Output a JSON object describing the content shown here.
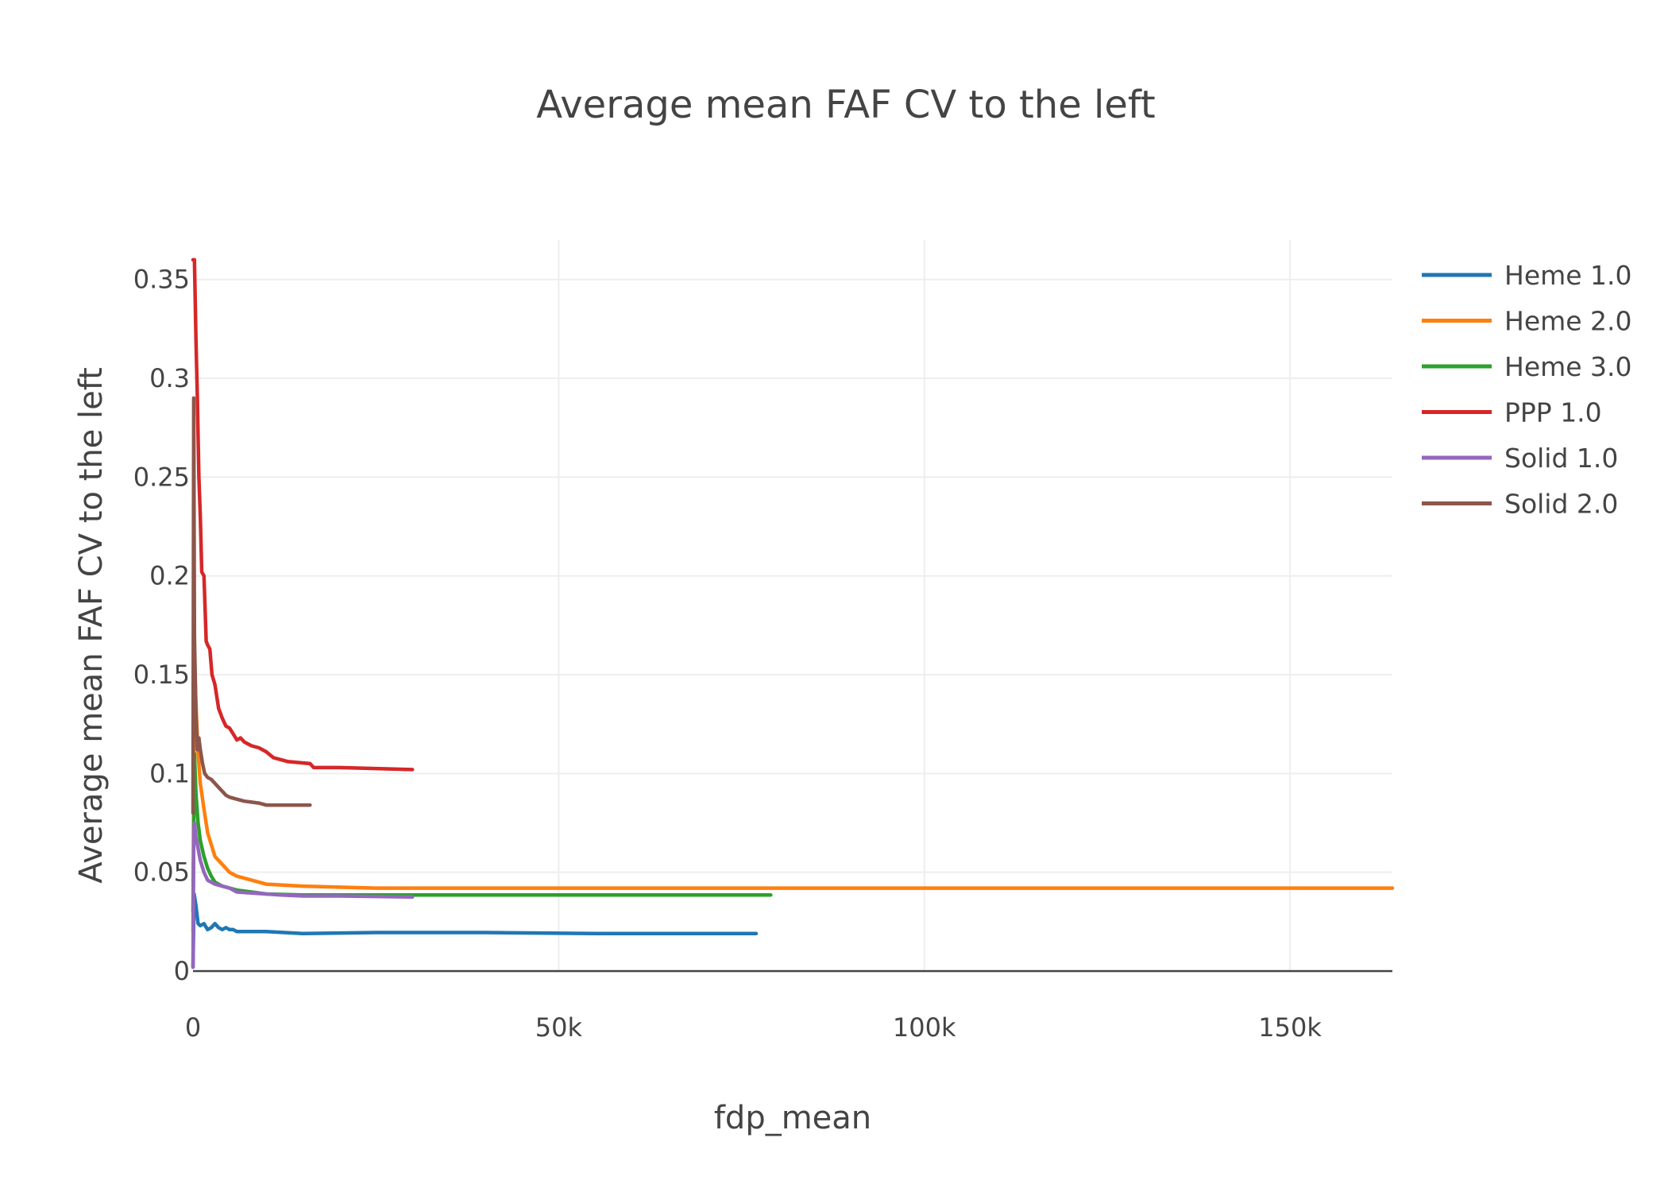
{
  "chart_data": {
    "type": "line",
    "title": "Average mean FAF CV to the left",
    "xlabel": "fdp_mean",
    "ylabel": "Average mean FAF CV to the left",
    "xlim": [
      0,
      164000
    ],
    "ylim": [
      0,
      0.37
    ],
    "x_ticks": [
      0,
      50000,
      100000,
      150000
    ],
    "x_tick_labels": [
      "0",
      "50k",
      "100k",
      "150k"
    ],
    "y_ticks": [
      0,
      0.05,
      0.1,
      0.15,
      0.2,
      0.25,
      0.3,
      0.35
    ],
    "y_tick_labels": [
      "0",
      "0.05",
      "0.1",
      "0.15",
      "0.2",
      "0.25",
      "0.3",
      "0.35"
    ],
    "grid": true,
    "legend_position": "top-right",
    "series": [
      {
        "name": "Heme 1.0",
        "color": "#1f77b4",
        "x": [
          0,
          150,
          400,
          700,
          1000,
          1500,
          2000,
          2500,
          3000,
          3500,
          4000,
          4500,
          5000,
          5500,
          6000,
          7000,
          8000,
          9000,
          10000,
          15000,
          25000,
          40000,
          55000,
          77000
        ],
        "y": [
          0.002,
          0.039,
          0.033,
          0.024,
          0.023,
          0.024,
          0.021,
          0.022,
          0.024,
          0.022,
          0.021,
          0.022,
          0.021,
          0.021,
          0.02,
          0.02,
          0.02,
          0.02,
          0.02,
          0.019,
          0.0195,
          0.0195,
          0.019,
          0.019
        ]
      },
      {
        "name": "Heme 2.0",
        "color": "#ff7f0e",
        "x": [
          0,
          200,
          400,
          700,
          1000,
          1500,
          2000,
          3000,
          4000,
          5000,
          6000,
          8000,
          10000,
          15000,
          25000,
          50000,
          100000,
          164000
        ],
        "y": [
          0.02,
          0.16,
          0.135,
          0.11,
          0.095,
          0.082,
          0.07,
          0.058,
          0.054,
          0.05,
          0.048,
          0.046,
          0.044,
          0.043,
          0.042,
          0.042,
          0.042,
          0.042
        ]
      },
      {
        "name": "Heme 3.0",
        "color": "#2ca02c",
        "x": [
          0,
          200,
          400,
          700,
          1000,
          1500,
          2000,
          2500,
          3000,
          4000,
          5000,
          6000,
          8000,
          10000,
          15000,
          30000,
          50000,
          79000
        ],
        "y": [
          0.03,
          0.11,
          0.09,
          0.075,
          0.066,
          0.058,
          0.052,
          0.048,
          0.045,
          0.043,
          0.042,
          0.041,
          0.04,
          0.039,
          0.0385,
          0.0385,
          0.0385,
          0.0385
        ]
      },
      {
        "name": "PPP 1.0",
        "color": "#d62728",
        "x": [
          0,
          200,
          400,
          600,
          800,
          1000,
          1200,
          1500,
          1800,
          2000,
          2300,
          2600,
          3000,
          3200,
          3500,
          4000,
          4500,
          5000,
          5500,
          6000,
          6500,
          7000,
          7500,
          8000,
          9000,
          10000,
          11000,
          12000,
          13000,
          16000,
          16500,
          20000,
          30000
        ],
        "y": [
          0.36,
          0.36,
          0.32,
          0.29,
          0.25,
          0.23,
          0.202,
          0.2,
          0.167,
          0.165,
          0.163,
          0.15,
          0.145,
          0.14,
          0.133,
          0.128,
          0.124,
          0.123,
          0.12,
          0.117,
          0.118,
          0.116,
          0.115,
          0.114,
          0.113,
          0.111,
          0.108,
          0.107,
          0.106,
          0.105,
          0.103,
          0.103,
          0.102
        ]
      },
      {
        "name": "Solid 1.0",
        "color": "#9467bd",
        "x": [
          0,
          100,
          200,
          400,
          700,
          1000,
          1500,
          2000,
          2500,
          3000,
          4000,
          5000,
          6000,
          8000,
          10000,
          12000,
          15000,
          20000,
          30000
        ],
        "y": [
          0.002,
          0.07,
          0.075,
          0.068,
          0.062,
          0.056,
          0.05,
          0.046,
          0.045,
          0.044,
          0.043,
          0.042,
          0.04,
          0.0395,
          0.039,
          0.0385,
          0.038,
          0.038,
          0.0375
        ]
      },
      {
        "name": "Solid 2.0",
        "color": "#8c564b",
        "x": [
          0,
          100,
          200,
          400,
          600,
          800,
          1000,
          1300,
          1600,
          2000,
          2500,
          3000,
          3500,
          4000,
          4500,
          5000,
          6000,
          7000,
          8000,
          9000,
          10000,
          12000,
          16000
        ],
        "y": [
          0.08,
          0.29,
          0.17,
          0.13,
          0.112,
          0.118,
          0.112,
          0.105,
          0.1,
          0.098,
          0.097,
          0.095,
          0.093,
          0.091,
          0.089,
          0.088,
          0.087,
          0.086,
          0.0855,
          0.085,
          0.084,
          0.084,
          0.084
        ]
      }
    ]
  }
}
